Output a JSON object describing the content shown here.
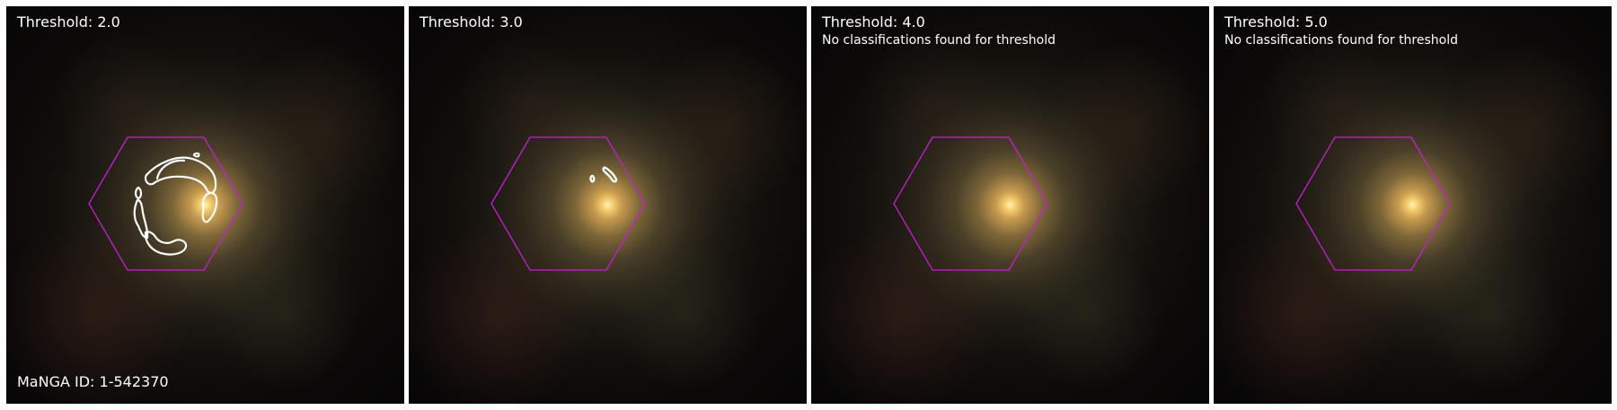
{
  "panels": [
    {
      "title": "Threshold: 2.0",
      "subtitle": "",
      "bottom_label": "MaNGA ID: 1-542370"
    },
    {
      "title": "Threshold: 3.0",
      "subtitle": "",
      "bottom_label": ""
    },
    {
      "title": "Threshold: 4.0",
      "subtitle": "No classifications found for threshold",
      "bottom_label": ""
    },
    {
      "title": "Threshold: 5.0",
      "subtitle": "No classifications found for threshold",
      "bottom_label": ""
    }
  ],
  "colors": {
    "background": "#ffffff",
    "hexagon": "#c61fd2",
    "contour": "#ffffff",
    "text": "#ffffff"
  }
}
